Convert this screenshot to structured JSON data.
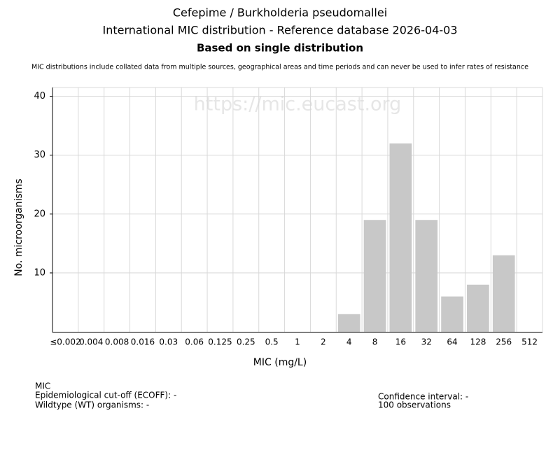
{
  "chart_data": {
    "type": "bar",
    "title": "Cefepime / Burkholderia pseudomallei",
    "subtitle": "International MIC distribution - Reference database 2026-04-03",
    "heading": "Based on single distribution",
    "note": "MIC distributions include collated data from multiple sources, geographical areas and time periods and can never be used to infer rates of resistance",
    "watermark": "https://mic.eucast.org",
    "xlabel": "MIC (mg/L)",
    "ylabel": "No. microorganisms",
    "categories": [
      "≤0.002",
      "0.004",
      "0.008",
      "0.016",
      "0.03",
      "0.06",
      "0.125",
      "0.25",
      "0.5",
      "1",
      "2",
      "4",
      "8",
      "16",
      "32",
      "64",
      "128",
      "256",
      "512"
    ],
    "values": [
      0,
      0,
      0,
      0,
      0,
      0,
      0,
      0,
      0,
      0,
      0,
      3,
      19,
      32,
      19,
      6,
      8,
      13,
      0
    ],
    "color": "#c8c8c8",
    "ylim": [
      0,
      41.5
    ],
    "yticks": [
      10,
      20,
      30,
      40
    ],
    "grid": true,
    "footer": {
      "left": [
        "MIC",
        "Epidemiological cut-off (ECOFF): -",
        "Wildtype (WT) organisms:  -"
      ],
      "right": [
        "Confidence interval: -",
        "100 observations"
      ]
    }
  }
}
